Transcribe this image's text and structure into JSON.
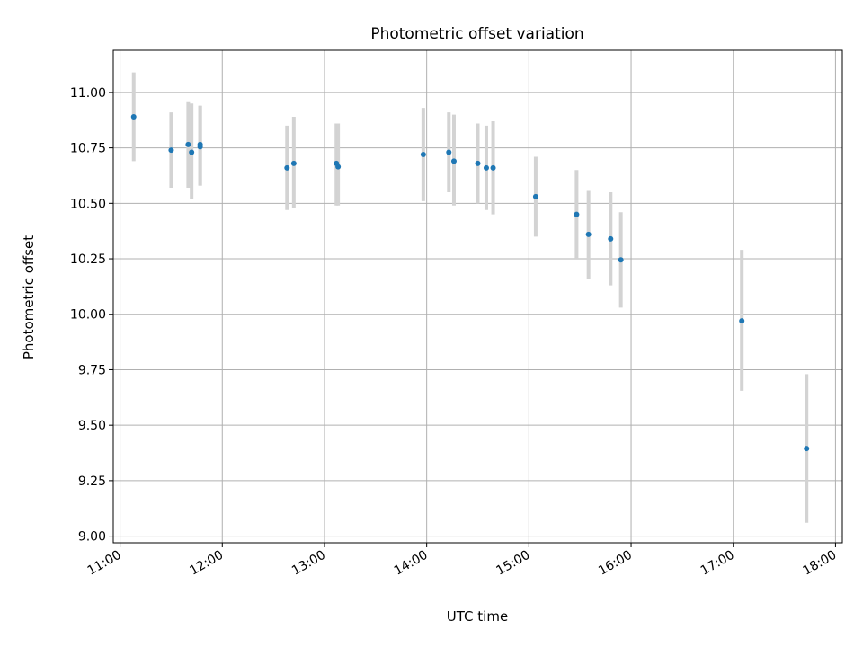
{
  "chart_data": {
    "type": "scatter",
    "title": "Photometric offset variation",
    "xlabel": "UTC time",
    "ylabel": "Photometric offset",
    "xlim": [
      "10:56",
      "18:04"
    ],
    "ylim": [
      8.97,
      11.19
    ],
    "x_ticks": [
      "11:00",
      "12:00",
      "13:00",
      "14:00",
      "15:00",
      "16:00",
      "17:00",
      "18:00"
    ],
    "y_ticks": [
      "9.00",
      "9.25",
      "9.50",
      "9.75",
      "10.00",
      "10.25",
      "10.50",
      "10.75",
      "11.00"
    ],
    "grid": true,
    "colors": {
      "point": "#1f77b4",
      "error_bar": "#d3d3d3",
      "grid": "#b0b0b0"
    },
    "series": [
      {
        "points": [
          {
            "x": "11:08",
            "y": 10.89,
            "err_low": 10.69,
            "err_high": 11.09
          },
          {
            "x": "11:30",
            "y": 10.74,
            "err_low": 10.57,
            "err_high": 10.91
          },
          {
            "x": "11:40",
            "y": 10.765,
            "err_low": 10.57,
            "err_high": 10.96
          },
          {
            "x": "11:42",
            "y": 10.73,
            "err_low": 10.52,
            "err_high": 10.95
          },
          {
            "x": "11:47",
            "y": 10.765,
            "err_low": 10.58,
            "err_high": 10.94
          },
          {
            "x": "11:47",
            "y": 10.755,
            "err_low": 10.58,
            "err_high": 10.94
          },
          {
            "x": "12:38",
            "y": 10.66,
            "err_low": 10.47,
            "err_high": 10.85
          },
          {
            "x": "12:42",
            "y": 10.68,
            "err_low": 10.48,
            "err_high": 10.89
          },
          {
            "x": "13:07",
            "y": 10.68,
            "err_low": 10.49,
            "err_high": 10.86
          },
          {
            "x": "13:08",
            "y": 10.665,
            "err_low": 10.49,
            "err_high": 10.86
          },
          {
            "x": "13:58",
            "y": 10.72,
            "err_low": 10.51,
            "err_high": 10.93
          },
          {
            "x": "14:13",
            "y": 10.73,
            "err_low": 10.55,
            "err_high": 10.91
          },
          {
            "x": "14:16",
            "y": 10.69,
            "err_low": 10.49,
            "err_high": 10.9
          },
          {
            "x": "14:30",
            "y": 10.68,
            "err_low": 10.5,
            "err_high": 10.86
          },
          {
            "x": "14:35",
            "y": 10.66,
            "err_low": 10.47,
            "err_high": 10.85
          },
          {
            "x": "14:39",
            "y": 10.66,
            "err_low": 10.45,
            "err_high": 10.87
          },
          {
            "x": "15:04",
            "y": 10.53,
            "err_low": 10.35,
            "err_high": 10.71
          },
          {
            "x": "15:28",
            "y": 10.45,
            "err_low": 10.25,
            "err_high": 10.65
          },
          {
            "x": "15:35",
            "y": 10.36,
            "err_low": 10.16,
            "err_high": 10.56
          },
          {
            "x": "15:48",
            "y": 10.34,
            "err_low": 10.13,
            "err_high": 10.55
          },
          {
            "x": "15:54",
            "y": 10.245,
            "err_low": 10.03,
            "err_high": 10.46
          },
          {
            "x": "17:05",
            "y": 9.97,
            "err_low": 9.655,
            "err_high": 10.29
          },
          {
            "x": "17:43",
            "y": 9.395,
            "err_low": 9.06,
            "err_high": 9.73
          }
        ]
      }
    ]
  }
}
